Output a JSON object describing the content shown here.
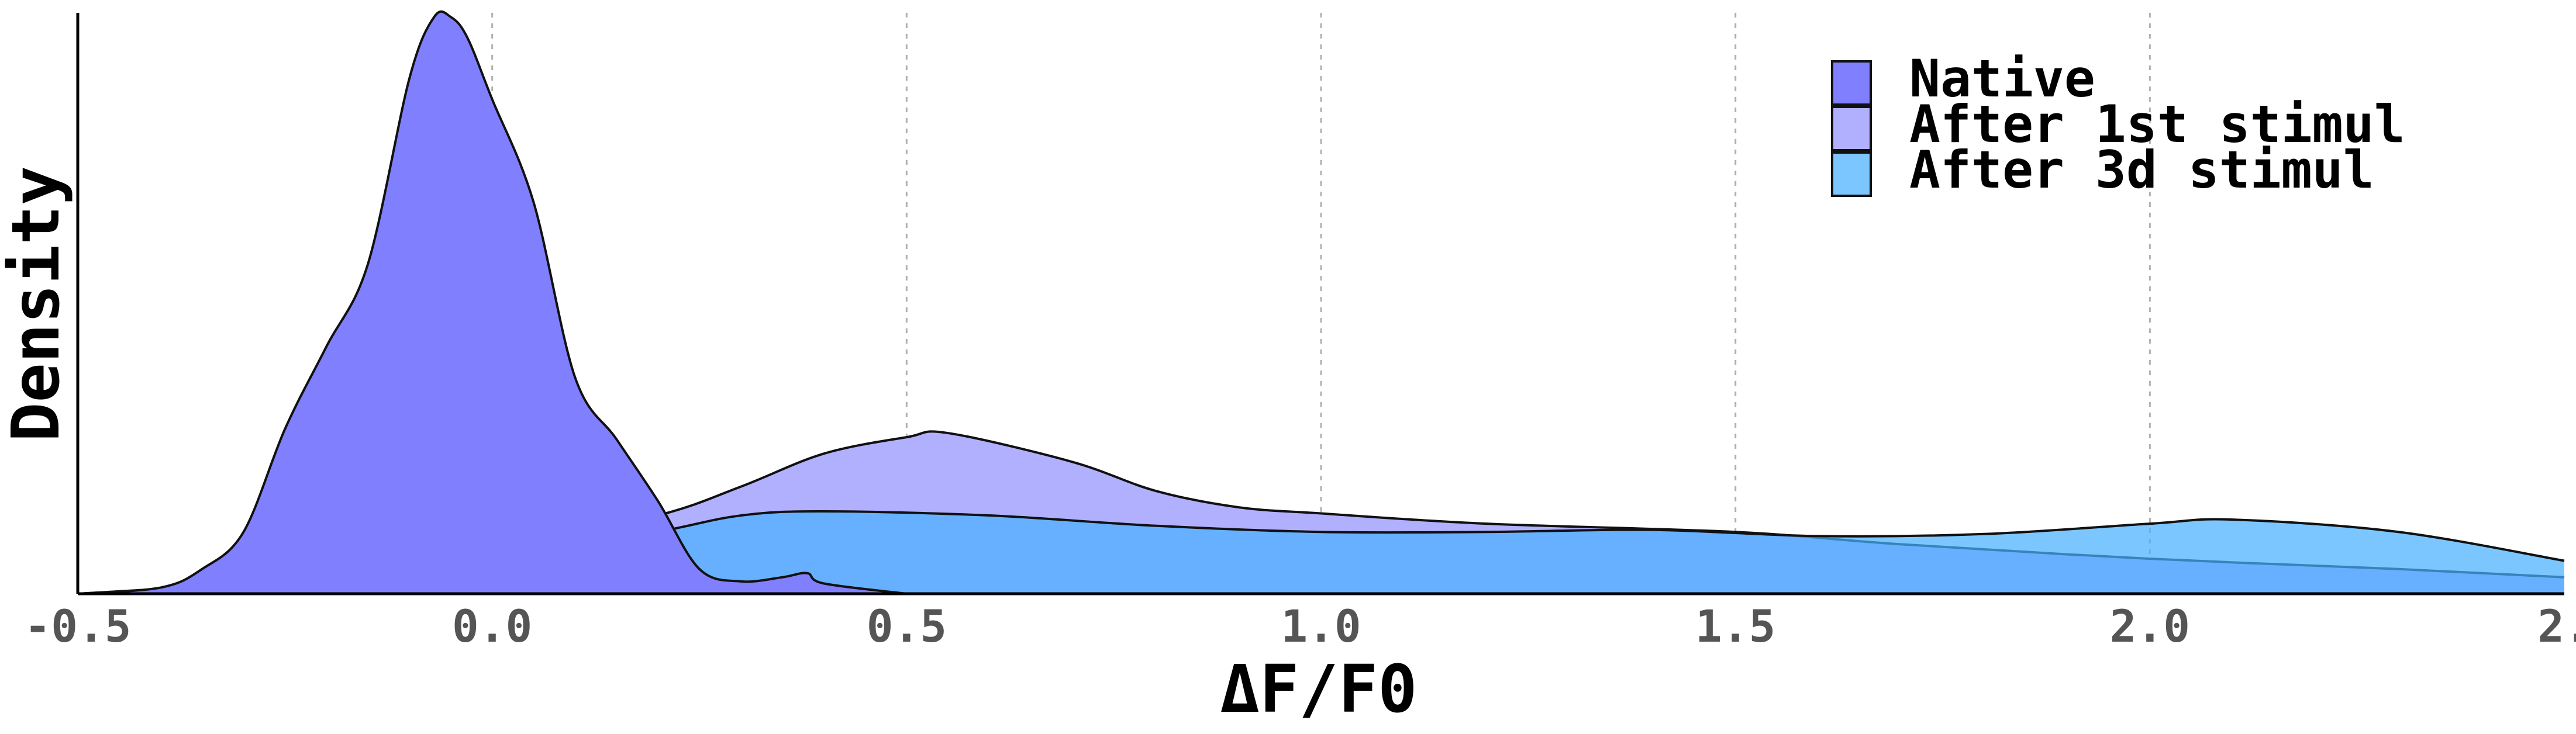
{
  "chart_data": {
    "type": "area",
    "xlabel": "ΔF/F0",
    "ylabel": "Density",
    "xlim": [
      -0.5,
      2.5
    ],
    "ylim": [
      0,
      2.82
    ],
    "x_ticks": [
      "-0.5",
      "0.0",
      "0.5",
      "1.0",
      "1.5",
      "2.0",
      "2."
    ],
    "y_tick_labels_shown": false,
    "grid": "vertical dotted",
    "legend_position": "top-right",
    "series": [
      {
        "name": "Native",
        "color": "#8080ff",
        "opacity": 1.0,
        "x": [
          -0.5,
          -0.4,
          -0.35,
          -0.3,
          -0.25,
          -0.2,
          -0.15,
          -0.1,
          -0.07,
          -0.05,
          -0.03,
          0.0,
          0.05,
          0.1,
          0.15,
          0.2,
          0.25,
          0.3,
          0.35,
          0.38,
          0.4,
          0.5
        ],
        "y": [
          0.0,
          0.03,
          0.12,
          0.3,
          0.8,
          1.2,
          1.6,
          2.5,
          2.8,
          2.8,
          2.7,
          2.4,
          1.9,
          1.05,
          0.75,
          0.45,
          0.12,
          0.06,
          0.08,
          0.1,
          0.05,
          0.0
        ]
      },
      {
        "name": "After 1st stimul",
        "color": "#b0b0ff",
        "opacity": 1.0,
        "x": [
          -0.5,
          -0.2,
          0.0,
          0.2,
          0.3,
          0.4,
          0.5,
          0.55,
          0.7,
          0.8,
          0.9,
          1.0,
          1.2,
          1.5,
          1.7,
          2.0,
          2.3,
          2.5
        ],
        "y": [
          0.0,
          0.08,
          0.2,
          0.38,
          0.52,
          0.68,
          0.76,
          0.78,
          0.64,
          0.5,
          0.42,
          0.39,
          0.34,
          0.3,
          0.24,
          0.17,
          0.12,
          0.08
        ]
      },
      {
        "name": "After 3d stimul",
        "color": "#4ab0ff",
        "opacity": 0.72,
        "x": [
          -0.5,
          -0.3,
          -0.1,
          0.0,
          0.2,
          0.3,
          0.4,
          0.6,
          0.8,
          1.0,
          1.2,
          1.4,
          1.6,
          1.8,
          2.0,
          2.1,
          2.3,
          2.5
        ],
        "y": [
          0.0,
          0.02,
          0.09,
          0.15,
          0.3,
          0.38,
          0.4,
          0.38,
          0.33,
          0.3,
          0.3,
          0.31,
          0.28,
          0.29,
          0.34,
          0.36,
          0.3,
          0.16
        ]
      }
    ]
  }
}
